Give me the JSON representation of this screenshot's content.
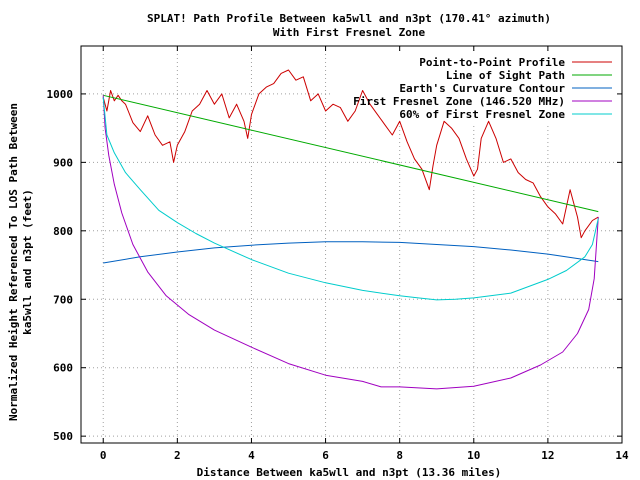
{
  "chart_data": {
    "type": "line",
    "title": "SPLAT! Path Profile Between ka5wll and n3pt (170.41° azimuth)",
    "subtitle": "With First Fresnel Zone",
    "xlabel": "Distance Between ka5wll and n3pt (13.36 miles)",
    "ylabel_line1": "Normalized Height Referenced To LOS Path Between",
    "ylabel_line2": "ka5wll and n3pt (feet)",
    "xlim": [
      -0.6,
      14
    ],
    "ylim": [
      490,
      1070
    ],
    "xticks": [
      0,
      2,
      4,
      6,
      8,
      10,
      12,
      14
    ],
    "yticks": [
      500,
      600,
      700,
      800,
      900,
      1000
    ],
    "grid": true,
    "legend_position": "top-right",
    "series": [
      {
        "name": "Point-to-Point Profile",
        "color": "#cc0000",
        "x": [
          0,
          0.1,
          0.2,
          0.3,
          0.4,
          0.5,
          0.6,
          0.8,
          1.0,
          1.2,
          1.4,
          1.6,
          1.8,
          1.9,
          2.0,
          2.2,
          2.4,
          2.6,
          2.8,
          3.0,
          3.2,
          3.4,
          3.6,
          3.8,
          3.9,
          4.0,
          4.2,
          4.4,
          4.6,
          4.8,
          5.0,
          5.2,
          5.4,
          5.6,
          5.8,
          6.0,
          6.2,
          6.4,
          6.6,
          6.8,
          7.0,
          7.2,
          7.4,
          7.6,
          7.8,
          8.0,
          8.2,
          8.4,
          8.6,
          8.8,
          8.9,
          9.0,
          9.2,
          9.4,
          9.6,
          9.8,
          10.0,
          10.1,
          10.2,
          10.4,
          10.6,
          10.8,
          11.0,
          11.2,
          11.4,
          11.6,
          11.8,
          12.0,
          12.2,
          12.4,
          12.6,
          12.8,
          12.9,
          13.0,
          13.2,
          13.36
        ],
        "values": [
          995,
          975,
          1005,
          990,
          998,
          990,
          985,
          958,
          945,
          968,
          940,
          925,
          930,
          900,
          925,
          945,
          975,
          985,
          1005,
          985,
          1000,
          965,
          985,
          960,
          935,
          970,
          1000,
          1010,
          1015,
          1030,
          1035,
          1020,
          1025,
          990,
          1000,
          975,
          985,
          980,
          960,
          975,
          1005,
          985,
          970,
          955,
          940,
          960,
          930,
          905,
          890,
          860,
          895,
          925,
          960,
          950,
          935,
          905,
          880,
          890,
          935,
          960,
          935,
          900,
          905,
          885,
          875,
          870,
          850,
          835,
          825,
          810,
          860,
          820,
          790,
          800,
          815,
          820
        ]
      },
      {
        "name": "Line of Sight Path",
        "color": "#00aa00",
        "x": [
          0,
          13.36
        ],
        "values": [
          998,
          828
        ]
      },
      {
        "name": "Earth's Curvature Contour",
        "color": "#0060c0",
        "x": [
          0,
          1,
          2,
          3,
          4,
          5,
          6,
          6.68,
          7,
          8,
          9,
          10,
          11,
          12,
          13,
          13.36
        ],
        "values": [
          753,
          762,
          769,
          775,
          779,
          782,
          784,
          784,
          784,
          783,
          780,
          777,
          772,
          766,
          758,
          755
        ]
      },
      {
        "name": "First Fresnel Zone (146.520 MHz)",
        "color": "#a000c0",
        "x": [
          0,
          0.05,
          0.15,
          0.3,
          0.5,
          0.8,
          1.2,
          1.7,
          2.3,
          3,
          4,
          5,
          6,
          7,
          7.5,
          8,
          9,
          10,
          11,
          11.8,
          12.4,
          12.8,
          13.1,
          13.25,
          13.36
        ],
        "values": [
          998,
          950,
          910,
          868,
          826,
          780,
          740,
          705,
          678,
          655,
          630,
          606,
          589,
          580,
          572,
          572,
          569,
          573,
          585,
          604,
          623,
          650,
          685,
          730,
          820
        ]
      },
      {
        "name": "60% of First Fresnel Zone",
        "color": "#00cccc",
        "x": [
          0,
          0.1,
          0.3,
          0.6,
          1.0,
          1.5,
          2.0,
          2.5,
          3,
          4,
          5,
          6,
          7,
          8,
          8.5,
          9,
          9.5,
          10,
          11,
          12,
          12.5,
          13,
          13.2,
          13.36
        ],
        "values": [
          995,
          940,
          914,
          885,
          860,
          830,
          812,
          796,
          782,
          758,
          738,
          724,
          713,
          705,
          702,
          699,
          700,
          702,
          709,
          729,
          742,
          762,
          780,
          818
        ]
      }
    ]
  }
}
